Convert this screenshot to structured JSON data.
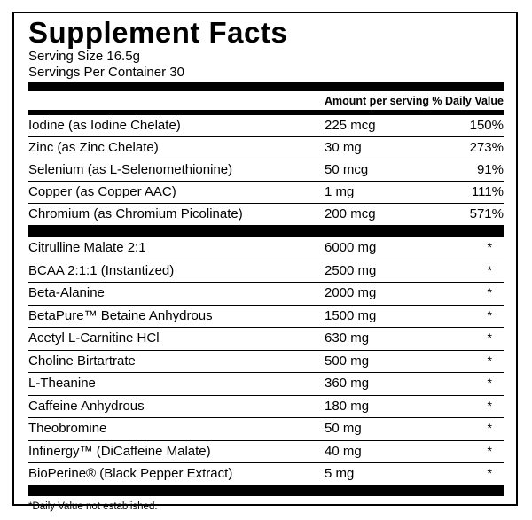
{
  "label": {
    "title": "Supplement Facts",
    "serving_size": "Serving Size 16.5g",
    "servings_per_container": "Servings Per Container 30",
    "columns": {
      "amount": "Amount per serving",
      "daily_value": "% Daily Value"
    },
    "sections": [
      {
        "rows": [
          {
            "name": "Iodine (as Iodine Chelate)",
            "amount": "225 mcg",
            "dv": "150%"
          },
          {
            "name": "Zinc (as Zinc Chelate)",
            "amount": "30 mg",
            "dv": "273%"
          },
          {
            "name": "Selenium (as L-Selenomethionine)",
            "amount": "50 mcg",
            "dv": "91%"
          },
          {
            "name": "Copper (as Copper AAC)",
            "amount": "1 mg",
            "dv": "111%"
          },
          {
            "name": "Chromium (as Chromium Picolinate)",
            "amount": "200 mcg",
            "dv": "571%"
          }
        ]
      },
      {
        "rows": [
          {
            "name": "Citrulline Malate 2:1",
            "amount": "6000 mg",
            "dv": "*"
          },
          {
            "name": "BCAA 2:1:1 (Instantized)",
            "amount": "2500 mg",
            "dv": "*"
          },
          {
            "name": "Beta-Alanine",
            "amount": "2000 mg",
            "dv": "*"
          },
          {
            "name": "BetaPure™ Betaine Anhydrous",
            "amount": "1500 mg",
            "dv": "*"
          },
          {
            "name": "Acetyl L-Carnitine HCl",
            "amount": "630 mg",
            "dv": "*"
          },
          {
            "name": "Choline Birtartrate",
            "amount": "500 mg",
            "dv": "*"
          },
          {
            "name": "L-Theanine",
            "amount": "360 mg",
            "dv": "*"
          },
          {
            "name": "Caffeine Anhydrous",
            "amount": "180 mg",
            "dv": "*"
          },
          {
            "name": "Theobromine",
            "amount": "50 mg",
            "dv": "*"
          },
          {
            "name": "Infinergy™ (DiCaffeine Malate)",
            "amount": "40 mg",
            "dv": "*"
          },
          {
            "name": "BioPerine® (Black Pepper Extract)",
            "amount": "5 mg",
            "dv": "*"
          }
        ]
      }
    ],
    "footnote": "*Daily Value not established.",
    "colors": {
      "text": "#000000",
      "background": "#ffffff",
      "border": "#000000"
    }
  }
}
